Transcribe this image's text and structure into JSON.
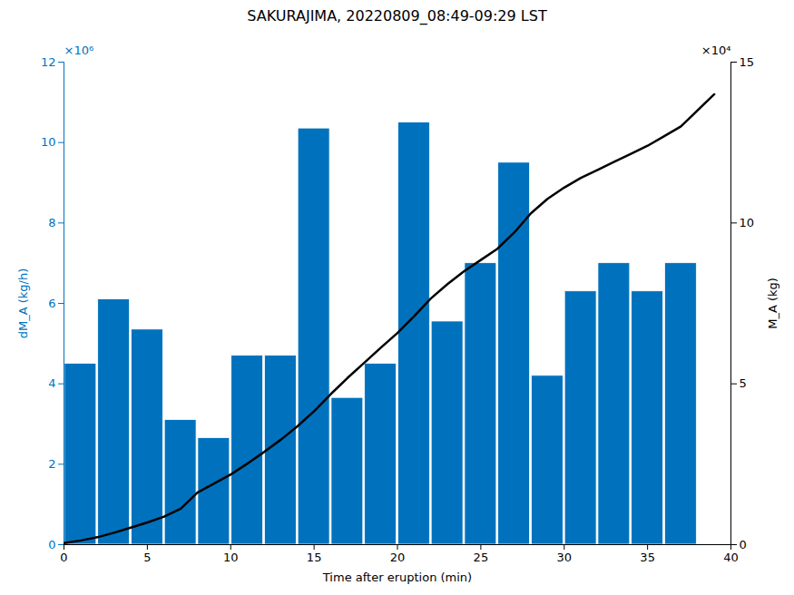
{
  "chart_data": {
    "type": "bar",
    "title": "SAKURAJIMA, 20220809_08:49-09:29 LST",
    "x_label": "Time after eruption (min)",
    "y_label": "dM_A (kg/h)",
    "y2_label": "M_A (kg)",
    "annotations": [
      {
        "text": "×10⁶",
        "axis": "y"
      },
      {
        "text": "×10⁴",
        "axis": "y2"
      }
    ],
    "series": [
      {
        "type": "bar",
        "color": "#0072BD",
        "axis": "y",
        "x": [
          1,
          3,
          5,
          7,
          9,
          11,
          13,
          15,
          17,
          19,
          21,
          23,
          25,
          27,
          29,
          31,
          33,
          35,
          37
        ],
        "values": [
          4.5,
          6.1,
          5.35,
          3.1,
          2.65,
          4.7,
          4.7,
          10.35,
          3.65,
          4.5,
          10.5,
          5.55,
          7.0,
          9.5,
          4.2,
          6.3,
          7.0,
          6.3,
          7.0
        ]
      },
      {
        "type": "line",
        "color": "#000000",
        "axis": "y2",
        "x": [
          0,
          1,
          2,
          3,
          4,
          5,
          6,
          7,
          8,
          9,
          10,
          11,
          12,
          13,
          14,
          15,
          16,
          17,
          18,
          19,
          20,
          21,
          22,
          23,
          24,
          25,
          26,
          27,
          28,
          29,
          30,
          31,
          32,
          33,
          34,
          35,
          36,
          37,
          38,
          39
        ],
        "values": [
          0.05,
          0.13,
          0.23,
          0.37,
          0.53,
          0.69,
          0.87,
          1.12,
          1.62,
          1.9,
          2.18,
          2.52,
          2.88,
          3.26,
          3.68,
          4.15,
          4.68,
          5.18,
          5.65,
          6.12,
          6.58,
          7.1,
          7.65,
          8.1,
          8.5,
          8.85,
          9.2,
          9.7,
          10.3,
          10.75,
          11.1,
          11.4,
          11.65,
          11.9,
          12.15,
          12.4,
          12.7,
          13.0,
          13.5,
          14.0
        ]
      }
    ],
    "xlim": [
      0,
      40
    ],
    "xticks": [
      0,
      5,
      10,
      15,
      20,
      25,
      30,
      35,
      40
    ],
    "ylim": [
      0,
      12
    ],
    "yticks": [
      0,
      2,
      4,
      6,
      8,
      10,
      12
    ],
    "y2lim": [
      0,
      15
    ],
    "y2ticks": [
      0,
      5,
      10,
      15
    ],
    "grid": false
  }
}
